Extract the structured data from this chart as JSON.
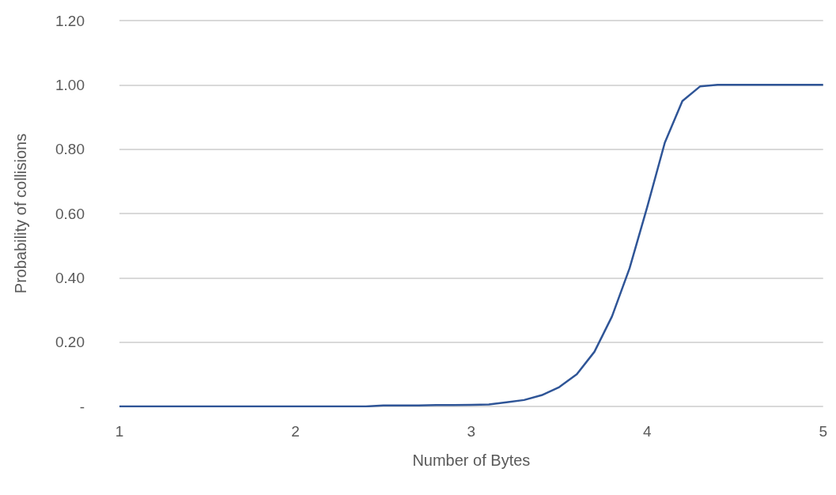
{
  "chart_data": {
    "type": "line",
    "xlabel": "Number of Bytes",
    "ylabel": "Probability of collisions",
    "x": [
      1,
      1.1,
      1.2,
      1.3,
      1.4,
      1.5,
      1.6,
      1.7,
      1.8,
      1.9,
      2,
      2.1,
      2.2,
      2.3,
      2.4,
      2.5,
      2.6,
      2.7,
      2.8,
      2.9,
      3,
      3.1,
      3.2,
      3.3,
      3.4,
      3.5,
      3.6,
      3.7,
      3.8,
      3.9,
      4,
      4.1,
      4.2,
      4.3,
      4.4,
      4.5,
      4.6,
      4.7,
      4.8,
      4.9,
      5
    ],
    "series": [
      {
        "color": "#2f5597",
        "values": [
          0,
          0,
          0,
          0,
          0,
          0,
          0,
          0,
          0,
          0,
          0,
          0,
          0,
          0,
          0,
          0.003,
          0.003,
          0.003,
          0.004,
          0.004,
          0.005,
          0.006,
          0.013,
          0.02,
          0.035,
          0.06,
          0.1,
          0.17,
          0.28,
          0.43,
          0.62,
          0.82,
          0.95,
          0.995,
          1,
          1,
          1,
          1,
          1,
          1,
          1
        ]
      }
    ],
    "xlim": [
      1,
      5
    ],
    "xticks": [
      1,
      2,
      3,
      4,
      5
    ],
    "ylim": [
      0,
      1.2
    ],
    "yticks": [
      {
        "value": 0,
        "label": "-"
      },
      {
        "value": 0.2,
        "label": "0.20"
      },
      {
        "value": 0.4,
        "label": "0.40"
      },
      {
        "value": 0.6,
        "label": "0.60"
      },
      {
        "value": 0.8,
        "label": "0.80"
      },
      {
        "value": 1,
        "label": "1.00"
      },
      {
        "value": 1.2,
        "label": "1.20"
      }
    ],
    "grid": "y",
    "marker": "none",
    "line_style": "solid"
  }
}
